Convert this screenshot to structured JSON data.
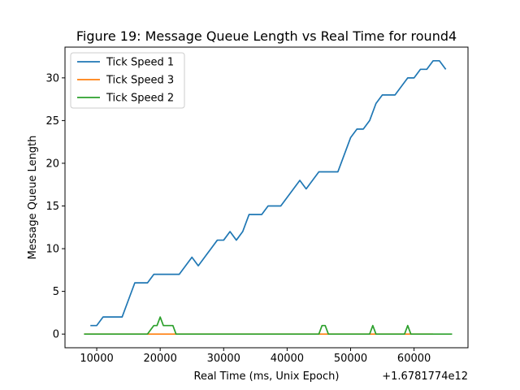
{
  "chart_data": {
    "type": "line",
    "title": "Figure 19: Message Queue Length vs Real Time for round4",
    "xlabel": "Real Time (ms, Unix Epoch)",
    "ylabel": "Message Queue Length",
    "x_offset_label": "+1.6781774e12",
    "xlim": [
      5000,
      68500
    ],
    "ylim": [
      -1.6,
      33.6
    ],
    "xticks": [
      10000,
      20000,
      30000,
      40000,
      50000,
      60000
    ],
    "yticks": [
      0,
      5,
      10,
      15,
      20,
      25,
      30
    ],
    "grid": false,
    "legend": "top-left",
    "series": [
      {
        "name": "Tick Speed 1",
        "color": "#1f77b4",
        "points": [
          [
            9000,
            1
          ],
          [
            10000,
            1
          ],
          [
            11000,
            2
          ],
          [
            12000,
            2
          ],
          [
            13000,
            2
          ],
          [
            14000,
            2
          ],
          [
            15000,
            4
          ],
          [
            16000,
            6
          ],
          [
            17000,
            6
          ],
          [
            18000,
            6
          ],
          [
            19000,
            7
          ],
          [
            20000,
            7
          ],
          [
            21000,
            7
          ],
          [
            22000,
            7
          ],
          [
            23000,
            7
          ],
          [
            24000,
            8
          ],
          [
            25000,
            9
          ],
          [
            26000,
            8
          ],
          [
            27000,
            9
          ],
          [
            28000,
            10
          ],
          [
            29000,
            11
          ],
          [
            30000,
            11
          ],
          [
            31000,
            12
          ],
          [
            32000,
            11
          ],
          [
            33000,
            12
          ],
          [
            34000,
            14
          ],
          [
            35000,
            14
          ],
          [
            36000,
            14
          ],
          [
            37000,
            15
          ],
          [
            38000,
            15
          ],
          [
            39000,
            15
          ],
          [
            40000,
            16
          ],
          [
            41000,
            17
          ],
          [
            42000,
            18
          ],
          [
            43000,
            17
          ],
          [
            44000,
            18
          ],
          [
            45000,
            19
          ],
          [
            46000,
            19
          ],
          [
            47000,
            19
          ],
          [
            48000,
            19
          ],
          [
            49000,
            21
          ],
          [
            50000,
            23
          ],
          [
            51000,
            24
          ],
          [
            52000,
            24
          ],
          [
            53000,
            25
          ],
          [
            54000,
            27
          ],
          [
            55000,
            28
          ],
          [
            56000,
            28
          ],
          [
            57000,
            28
          ],
          [
            58000,
            29
          ],
          [
            59000,
            30
          ],
          [
            60000,
            30
          ],
          [
            61000,
            31
          ],
          [
            62000,
            31
          ],
          [
            63000,
            32
          ],
          [
            64000,
            32
          ],
          [
            65000,
            31
          ]
        ]
      },
      {
        "name": "Tick Speed 3",
        "color": "#ff7f0e",
        "points": [
          [
            8000,
            0
          ],
          [
            12000,
            0
          ],
          [
            16000,
            0
          ],
          [
            20000,
            0
          ],
          [
            24000,
            0
          ],
          [
            28000,
            0
          ],
          [
            32000,
            0
          ],
          [
            36000,
            0
          ],
          [
            40000,
            0
          ],
          [
            44000,
            0
          ],
          [
            48000,
            0
          ],
          [
            52000,
            0
          ],
          [
            56000,
            0
          ],
          [
            60000,
            0
          ],
          [
            63000,
            0
          ]
        ]
      },
      {
        "name": "Tick Speed 2",
        "color": "#2ca02c",
        "points": [
          [
            8000,
            0
          ],
          [
            18000,
            0
          ],
          [
            19000,
            1
          ],
          [
            19500,
            1
          ],
          [
            20000,
            2
          ],
          [
            20500,
            1
          ],
          [
            21000,
            1
          ],
          [
            22000,
            1
          ],
          [
            22500,
            0
          ],
          [
            30000,
            0
          ],
          [
            40000,
            0
          ],
          [
            45000,
            0
          ],
          [
            45500,
            1
          ],
          [
            46000,
            1
          ],
          [
            46500,
            0
          ],
          [
            50000,
            0
          ],
          [
            53000,
            0
          ],
          [
            53500,
            1
          ],
          [
            54000,
            0
          ],
          [
            58500,
            0
          ],
          [
            59000,
            1
          ],
          [
            59500,
            0
          ],
          [
            62000,
            0
          ],
          [
            66000,
            0
          ]
        ]
      }
    ]
  }
}
